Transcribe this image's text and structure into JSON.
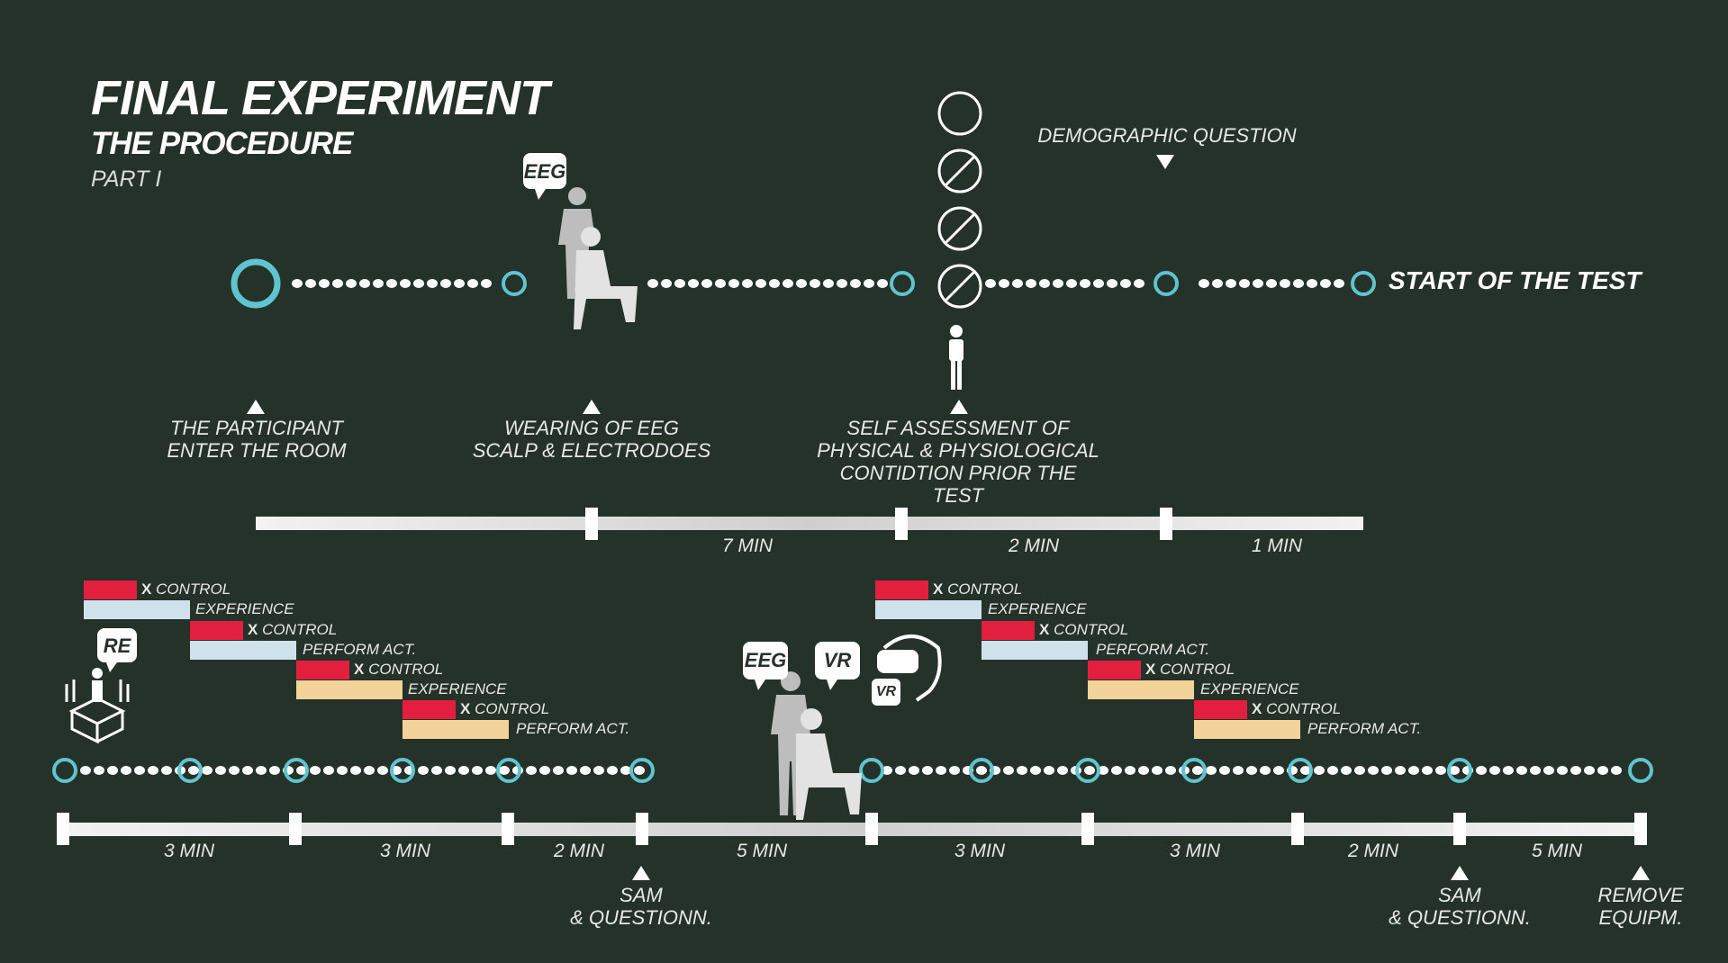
{
  "header": {
    "title": "FINAL EXPERIMENT",
    "subtitle": "THE PROCEDURE",
    "part": "PART I"
  },
  "top_timeline": {
    "end_label": "START OF THE TEST",
    "icon_badge": "EEG",
    "steps": [
      {
        "line1": "THE PARTICIPANT",
        "line2": "ENTER THE ROOM"
      },
      {
        "line1": "WEARING OF EEG",
        "line2": "SCALP & ELECTRODOES"
      },
      {
        "line1": "SELF ASSESSMENT OF",
        "line2": "PHYSICAL & PHYSIOLOGICAL",
        "line3": "CONTIDTION PRIOR THE",
        "line4": "TEST"
      },
      {
        "line1": "DEMOGRAPHIC QUESTION"
      }
    ],
    "durations": [
      "7 MIN",
      "2 MIN",
      "1 MIN"
    ]
  },
  "bottom_timeline": {
    "badges": [
      "RE",
      "EEG",
      "VR",
      "VR"
    ],
    "conditions_left": [
      {
        "mark": "X",
        "control": "CONTROL",
        "label": "EXPERIENCE"
      },
      {
        "mark": "X",
        "control": "CONTROL",
        "label": "PERFORM ACT."
      },
      {
        "mark": "X",
        "control": "CONTROL",
        "label": "EXPERIENCE"
      },
      {
        "mark": "X",
        "control": "CONTROL",
        "label": "PERFORM ACT."
      }
    ],
    "conditions_right": [
      {
        "mark": "X",
        "control": "CONTROL",
        "label": "EXPERIENCE"
      },
      {
        "mark": "X",
        "control": "CONTROL",
        "label": "PERFORM ACT."
      },
      {
        "mark": "X",
        "control": "CONTROL",
        "label": "EXPERIENCE"
      },
      {
        "mark": "X",
        "control": "CONTROL",
        "label": "PERFORM ACT."
      }
    ],
    "durations": [
      "3 MIN",
      "3 MIN",
      "2 MIN",
      "5 MIN",
      "3 MIN",
      "3 MIN",
      "2 MIN",
      "5 MIN"
    ],
    "markers": [
      {
        "line1": "SAM",
        "line2": "& QUESTIONN."
      },
      {
        "line1": "SAM",
        "line2": "& QUESTIONN."
      },
      {
        "line1": "REMOVE",
        "line2": "EQUIPM."
      }
    ]
  },
  "colors": {
    "background": "#253229",
    "node": "#5fc4cf",
    "control": "#e21f3f",
    "experience_light": "#cfe1ea",
    "perform_light": "#f2d49a",
    "bar": "#e6e6e6"
  }
}
